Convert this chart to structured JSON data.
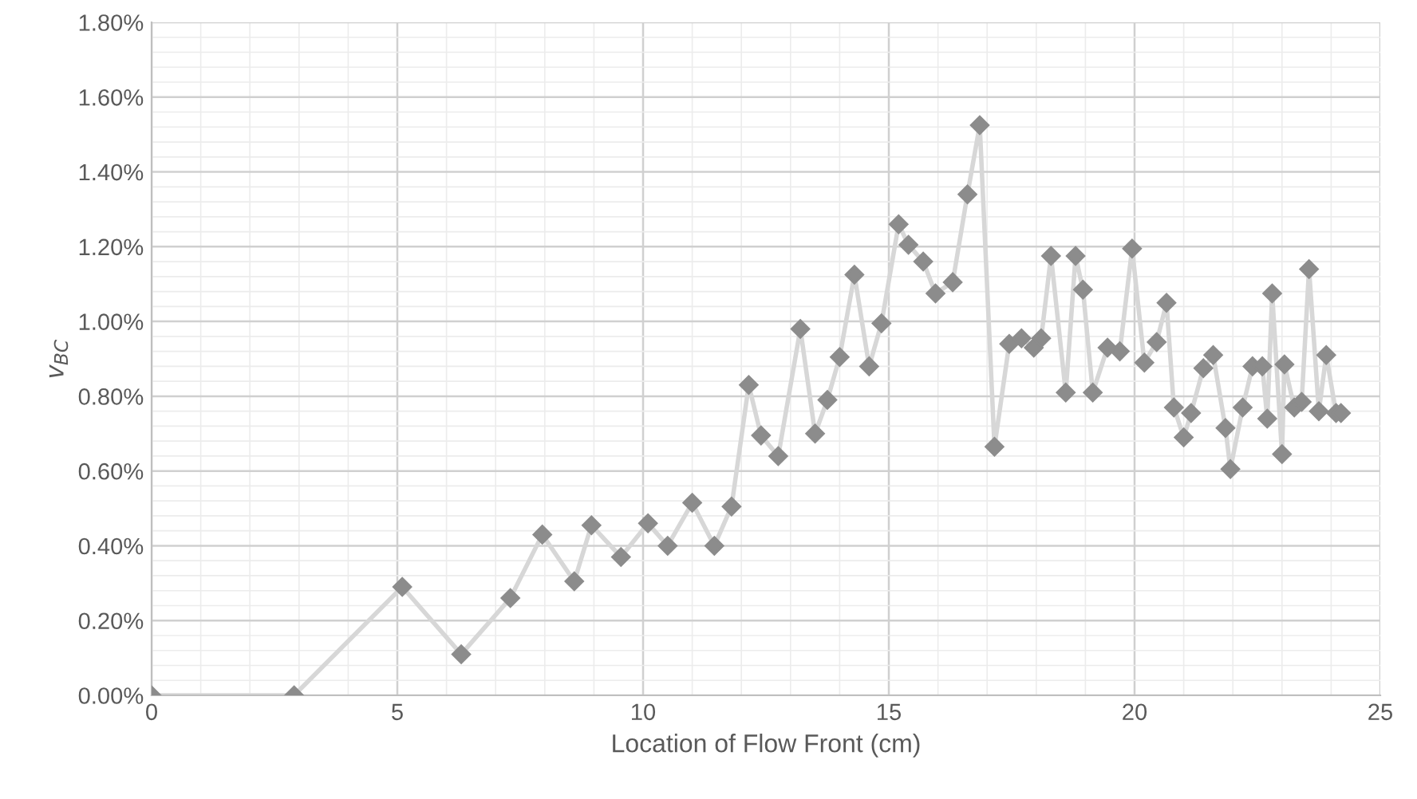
{
  "chart_data": {
    "type": "line",
    "xlabel": "Location of Flow Front (cm)",
    "ylabel": "v$_{BC}$",
    "x": [
      0,
      2.9,
      5.1,
      6.3,
      7.3,
      7.95,
      8.6,
      8.95,
      9.55,
      10.1,
      10.5,
      11.0,
      11.45,
      11.8,
      12.15,
      12.4,
      12.75,
      13.2,
      13.5,
      13.75,
      14.0,
      14.3,
      14.6,
      14.85,
      15.2,
      15.4,
      15.7,
      15.95,
      16.3,
      16.6,
      16.85,
      17.15,
      17.45,
      17.7,
      17.95,
      18.1,
      18.3,
      18.6,
      18.8,
      18.95,
      19.15,
      19.45,
      19.7,
      19.95,
      20.2,
      20.45,
      20.65,
      20.8,
      21.0,
      21.15,
      21.4,
      21.6,
      21.85,
      21.95,
      22.2,
      22.4,
      22.6,
      22.7,
      22.8,
      23.0,
      23.05,
      23.25,
      23.4,
      23.55,
      23.75,
      23.9,
      24.1,
      24.2
    ],
    "series": [
      {
        "color": "#8c8c8c",
        "values": [
          0,
          0,
          0.29,
          0.11,
          0.26,
          0.43,
          0.305,
          0.455,
          0.37,
          0.46,
          0.4,
          0.515,
          0.4,
          0.505,
          0.83,
          0.695,
          0.64,
          0.98,
          0.7,
          0.79,
          0.905,
          1.125,
          0.88,
          0.995,
          1.26,
          1.205,
          1.16,
          1.075,
          1.105,
          1.34,
          1.525,
          0.665,
          0.94,
          0.955,
          0.93,
          0.955,
          1.175,
          0.81,
          1.175,
          1.085,
          0.81,
          0.93,
          0.92,
          1.195,
          0.89,
          0.945,
          1.05,
          0.77,
          0.69,
          0.755,
          0.875,
          0.91,
          0.715,
          0.605,
          0.77,
          0.88,
          0.88,
          0.74,
          1.075,
          0.645,
          0.885,
          0.77,
          0.785,
          1.14,
          0.76,
          0.91,
          0.755,
          0.755
        ]
      }
    ],
    "xlim": [
      0,
      25
    ],
    "xticks": [
      0,
      5,
      10,
      15,
      20,
      25
    ],
    "ylim": [
      0,
      1.8
    ],
    "yticks": [
      {
        "value": 0,
        "label": "0.00%"
      },
      {
        "value": 0.2,
        "label": "0.20%"
      },
      {
        "value": 0.4,
        "label": "0.40%"
      },
      {
        "value": 0.6,
        "label": "0.60%"
      },
      {
        "value": 0.8,
        "label": "0.80%"
      },
      {
        "value": 1.0,
        "label": "1.00%"
      },
      {
        "value": 1.2,
        "label": "1.20%"
      },
      {
        "value": 1.4,
        "label": "1.40%"
      },
      {
        "value": 1.6,
        "label": "1.60%"
      },
      {
        "value": 1.8,
        "label": "1.80%"
      }
    ],
    "grid": true,
    "marker": "diamond",
    "line_style": "solid"
  }
}
